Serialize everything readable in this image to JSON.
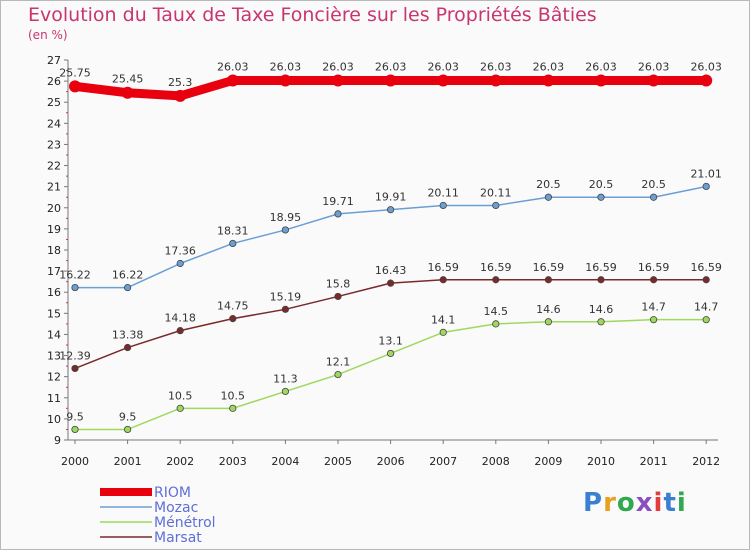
{
  "title": "Evolution du Taux de Taxe Foncière sur les Propriétés Bâties",
  "subtitle": "(en %)",
  "logo": {
    "text": "Proxiti",
    "colors": [
      "#3b7fd0",
      "#e8a021",
      "#2fa84f",
      "#8a4fbf",
      "#e23c3c",
      "#3b7fd0",
      "#2fa84f"
    ]
  },
  "chart_data": {
    "type": "line",
    "x": [
      2000,
      2001,
      2002,
      2003,
      2004,
      2005,
      2006,
      2007,
      2008,
      2009,
      2010,
      2011,
      2012
    ],
    "ylim": [
      9,
      27
    ],
    "yticks": [
      9,
      10,
      11,
      12,
      13,
      14,
      15,
      16,
      17,
      18,
      19,
      20,
      21,
      22,
      23,
      24,
      25,
      26,
      27
    ],
    "grid": false,
    "legend_position": "bottom-left",
    "series": [
      {
        "name": "RIOM",
        "color": "#e8000f",
        "values": [
          25.75,
          25.45,
          25.3,
          26.03,
          26.03,
          26.03,
          26.03,
          26.03,
          26.03,
          26.03,
          26.03,
          26.03,
          26.03
        ],
        "labels": [
          "25.75",
          "25.45",
          "25.3",
          "26.03",
          "26.03",
          "26.03",
          "26.03",
          "26.03",
          "26.03",
          "26.03",
          "26.03",
          "26.03",
          "26.03"
        ]
      },
      {
        "name": "Mozac",
        "color": "#6a9fd4",
        "values": [
          16.22,
          16.22,
          17.36,
          18.31,
          18.95,
          19.71,
          19.91,
          20.11,
          20.11,
          20.5,
          20.5,
          20.5,
          21.01
        ],
        "labels": [
          "16.22",
          "16.22",
          "17.36",
          "18.31",
          "18.95",
          "19.71",
          "19.91",
          "20.11",
          "20.11",
          "20.5",
          "20.5",
          "20.5",
          "21.01"
        ]
      },
      {
        "name": "Ménétrol",
        "color": "#9fd85f",
        "values": [
          9.5,
          9.5,
          10.5,
          10.5,
          11.3,
          12.1,
          13.1,
          14.1,
          14.5,
          14.6,
          14.6,
          14.7,
          14.7
        ],
        "labels": [
          "9.5",
          "9.5",
          "10.5",
          "10.5",
          "11.3",
          "12.1",
          "13.1",
          "14.1",
          "14.5",
          "14.6",
          "14.6",
          "14.7",
          "14.7"
        ]
      },
      {
        "name": "Marsat",
        "color": "#7a2a2a",
        "values": [
          12.39,
          13.38,
          14.18,
          14.75,
          15.19,
          15.8,
          16.43,
          16.59,
          16.59,
          16.59,
          16.59,
          16.59,
          16.59
        ],
        "labels": [
          "12.39",
          "13.38",
          "14.18",
          "14.75",
          "15.19",
          "15.8",
          "16.43",
          "16.59",
          "16.59",
          "16.59",
          "16.59",
          "16.59",
          "16.59"
        ]
      }
    ]
  }
}
